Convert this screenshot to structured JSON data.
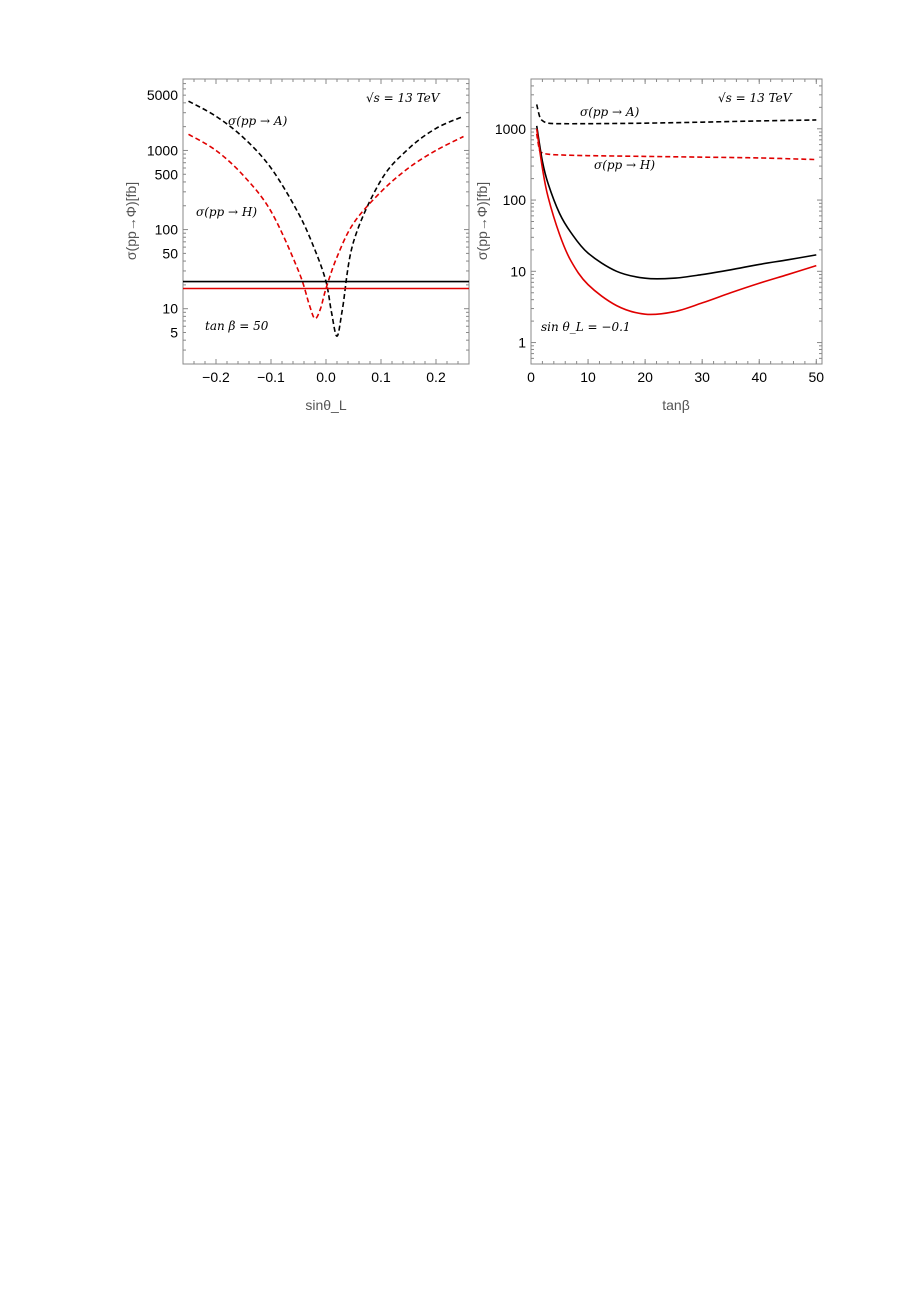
{
  "chart_data": [
    {
      "type": "line",
      "xlabel": "sinθ_L",
      "ylabel": "σ(pp→Φ)[fb]",
      "yscale": "log",
      "xlim": [
        -0.26,
        0.26
      ],
      "ylim": [
        2,
        8000
      ],
      "xticks": [
        -0.2,
        -0.1,
        0.0,
        0.1,
        0.2
      ],
      "xtick_labels": [
        "−0.2",
        "−0.1",
        "0.0",
        "0.1",
        "0.2"
      ],
      "yticks": [
        5,
        10,
        50,
        100,
        500,
        1000,
        5000
      ],
      "ytick_labels": [
        "5",
        "10",
        "50",
        "100",
        "500",
        "1000",
        "5000"
      ],
      "annotations": [
        "√s = 13 TeV",
        "σ(pp → A)",
        "σ(pp → H)",
        "tan β = 50"
      ],
      "series": [
        {
          "name": "σ(pp → A)",
          "color": "#000000",
          "dash": true,
          "x": [
            -0.25,
            -0.2,
            -0.15,
            -0.1,
            -0.05,
            -0.02,
            0.0,
            0.01,
            0.02,
            0.03,
            0.05,
            0.1,
            0.15,
            0.2,
            0.25
          ],
          "y": [
            4200,
            2700,
            1450,
            600,
            160,
            55,
            22,
            9,
            4.5,
            10,
            70,
            420,
            1050,
            1900,
            2700
          ]
        },
        {
          "name": "σ(pp → H)",
          "color": "#e00000",
          "dash": true,
          "x": [
            -0.25,
            -0.2,
            -0.15,
            -0.1,
            -0.05,
            -0.03,
            -0.02,
            -0.01,
            0.0,
            0.02,
            0.05,
            0.1,
            0.15,
            0.2,
            0.25
          ],
          "y": [
            1600,
            1000,
            480,
            170,
            30,
            11,
            7.5,
            10,
            18,
            45,
            120,
            300,
            600,
            1000,
            1500
          ]
        },
        {
          "color": "#000000",
          "dash": false,
          "x": [
            -0.26,
            0.26
          ],
          "y": [
            22,
            22
          ]
        },
        {
          "color": "#e00000",
          "dash": false,
          "x": [
            -0.26,
            0.26
          ],
          "y": [
            18,
            18
          ]
        }
      ]
    },
    {
      "type": "line",
      "xlabel": "tanβ",
      "ylabel": "σ(pp→Φ)[fb]",
      "yscale": "log",
      "xlim": [
        0,
        51
      ],
      "ylim": [
        0.5,
        5000
      ],
      "xticks": [
        0,
        10,
        20,
        30,
        40,
        50
      ],
      "xtick_labels": [
        "0",
        "10",
        "20",
        "30",
        "40",
        "50"
      ],
      "yticks": [
        1,
        10,
        100,
        1000
      ],
      "ytick_labels": [
        "1",
        "10",
        "100",
        "1000"
      ],
      "annotations": [
        "√s = 13 TeV",
        "σ(pp → A)",
        "σ(pp → H)",
        "sin θ_L = −0.1"
      ],
      "series": [
        {
          "name": "σ(pp → A)",
          "color": "#000000",
          "dash": true,
          "x": [
            1,
            1.5,
            2,
            3,
            5,
            10,
            20,
            30,
            40,
            50
          ],
          "y": [
            2200,
            1500,
            1300,
            1200,
            1180,
            1180,
            1200,
            1240,
            1290,
            1330
          ]
        },
        {
          "name": "σ(pp → H)",
          "color": "#e00000",
          "dash": true,
          "x": [
            1,
            1.5,
            2,
            3,
            5,
            10,
            20,
            30,
            40,
            50
          ],
          "y": [
            850,
            500,
            460,
            440,
            430,
            420,
            410,
            400,
            390,
            370
          ]
        },
        {
          "color": "#000000",
          "dash": false,
          "x": [
            1,
            2,
            3,
            5,
            7,
            10,
            15,
            20,
            25,
            30,
            35,
            40,
            45,
            50
          ],
          "y": [
            1100,
            350,
            170,
            65,
            35,
            18,
            10,
            8,
            8,
            9,
            10.5,
            12.5,
            14.5,
            17
          ]
        },
        {
          "color": "#e00000",
          "dash": false,
          "x": [
            1,
            2,
            3,
            5,
            7,
            10,
            15,
            20,
            25,
            30,
            35,
            40,
            45,
            50
          ],
          "y": [
            1000,
            280,
            110,
            33,
            14,
            6.5,
            3.3,
            2.5,
            2.7,
            3.6,
            5,
            6.8,
            9,
            12
          ]
        }
      ]
    }
  ]
}
